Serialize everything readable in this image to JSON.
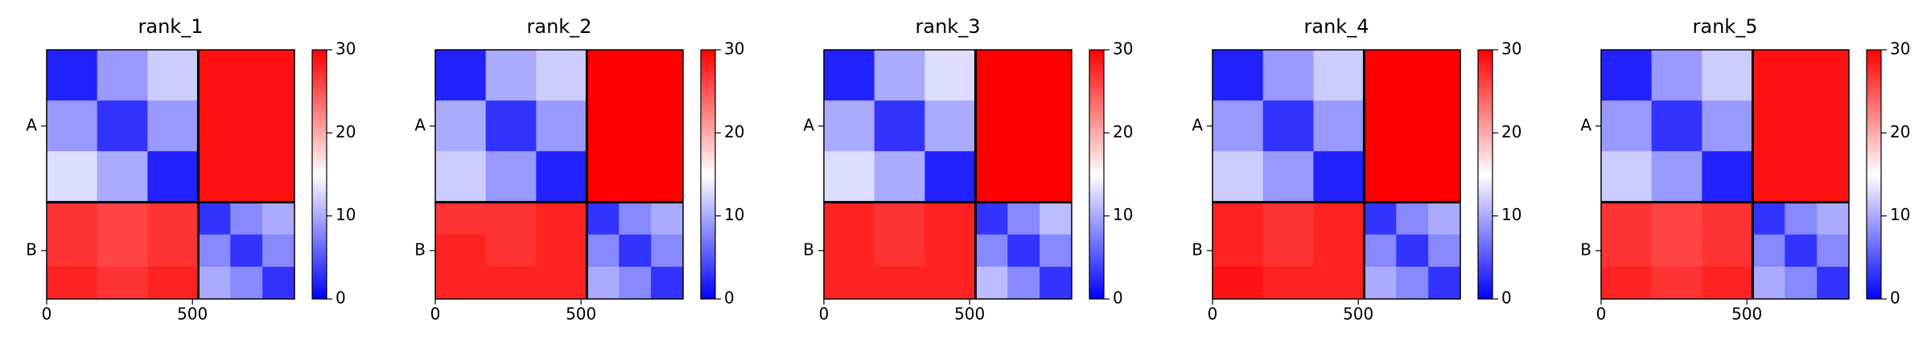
{
  "chart_data": [
    {
      "type": "heatmap",
      "title": "rank_1",
      "bins": [
        0,
        173,
        346,
        520,
        630,
        740,
        850
      ],
      "xlim": [
        0,
        850
      ],
      "xticks": [
        0,
        500
      ],
      "yticks": [
        {
          "value": 260,
          "label": "A"
        },
        {
          "value": 685,
          "label": "B"
        }
      ],
      "chain_breaks": [
        520
      ],
      "clim": [
        0,
        30
      ],
      "cticks": [
        0,
        10,
        20,
        30
      ],
      "colormap": "bwr",
      "z": [
        [
          2,
          9,
          12,
          29,
          29,
          29
        ],
        [
          9,
          3,
          9,
          29,
          29,
          29
        ],
        [
          13,
          10,
          2,
          29,
          29,
          29
        ],
        [
          27,
          26,
          27,
          3,
          8,
          10
        ],
        [
          27,
          26,
          27,
          8,
          3,
          8
        ],
        [
          28,
          27,
          28,
          10,
          8,
          3
        ]
      ]
    },
    {
      "type": "heatmap",
      "title": "rank_2",
      "bins": [
        0,
        173,
        346,
        520,
        630,
        740,
        850
      ],
      "xlim": [
        0,
        850
      ],
      "xticks": [
        0,
        500
      ],
      "yticks": [
        {
          "value": 260,
          "label": "A"
        },
        {
          "value": 685,
          "label": "B"
        }
      ],
      "chain_breaks": [
        520
      ],
      "clim": [
        0,
        30
      ],
      "cticks": [
        0,
        10,
        20,
        30
      ],
      "colormap": "bwr",
      "z": [
        [
          2,
          10,
          12,
          30,
          30,
          30
        ],
        [
          10,
          3,
          9,
          30,
          30,
          30
        ],
        [
          12,
          9,
          2,
          30,
          30,
          30
        ],
        [
          27,
          27,
          28,
          3,
          8,
          10
        ],
        [
          28,
          27,
          28,
          8,
          3,
          8
        ],
        [
          28,
          28,
          28,
          10,
          8,
          3
        ]
      ]
    },
    {
      "type": "heatmap",
      "title": "rank_3",
      "bins": [
        0,
        173,
        346,
        520,
        630,
        740,
        850
      ],
      "xlim": [
        0,
        850
      ],
      "xticks": [
        0,
        500
      ],
      "yticks": [
        {
          "value": 260,
          "label": "A"
        },
        {
          "value": 685,
          "label": "B"
        }
      ],
      "chain_breaks": [
        520
      ],
      "clim": [
        0,
        30
      ],
      "cticks": [
        0,
        10,
        20,
        30
      ],
      "colormap": "bwr",
      "z": [
        [
          2,
          10,
          13,
          30,
          30,
          30
        ],
        [
          10,
          3,
          10,
          30,
          30,
          30
        ],
        [
          13,
          10,
          2,
          30,
          30,
          30
        ],
        [
          28,
          27,
          28,
          3,
          8,
          11
        ],
        [
          28,
          27,
          28,
          8,
          3,
          8
        ],
        [
          28,
          28,
          28,
          11,
          8,
          3
        ]
      ]
    },
    {
      "type": "heatmap",
      "title": "rank_4",
      "bins": [
        0,
        173,
        346,
        520,
        630,
        740,
        850
      ],
      "xlim": [
        0,
        850
      ],
      "xticks": [
        0,
        500
      ],
      "yticks": [
        {
          "value": 260,
          "label": "A"
        },
        {
          "value": 685,
          "label": "B"
        }
      ],
      "chain_breaks": [
        520
      ],
      "clim": [
        0,
        30
      ],
      "cticks": [
        0,
        10,
        20,
        30
      ],
      "colormap": "bwr",
      "z": [
        [
          2,
          9,
          12,
          30,
          30,
          30
        ],
        [
          9,
          3,
          9,
          30,
          30,
          30
        ],
        [
          12,
          9,
          2,
          30,
          30,
          30
        ],
        [
          28,
          27,
          28,
          3,
          8,
          10
        ],
        [
          28,
          27,
          28,
          8,
          3,
          8
        ],
        [
          29,
          28,
          28,
          10,
          8,
          3
        ]
      ]
    },
    {
      "type": "heatmap",
      "title": "rank_5",
      "bins": [
        0,
        173,
        346,
        520,
        630,
        740,
        850
      ],
      "xlim": [
        0,
        850
      ],
      "xticks": [
        0,
        500
      ],
      "yticks": [
        {
          "value": 260,
          "label": "A"
        },
        {
          "value": 685,
          "label": "B"
        }
      ],
      "chain_breaks": [
        520
      ],
      "clim": [
        0,
        30
      ],
      "cticks": [
        0,
        10,
        20,
        30
      ],
      "colormap": "bwr",
      "z": [
        [
          2,
          9,
          12,
          29,
          29,
          29
        ],
        [
          9,
          3,
          9,
          29,
          29,
          29
        ],
        [
          12,
          9,
          2,
          29,
          29,
          29
        ],
        [
          27,
          26,
          27,
          3,
          8,
          10
        ],
        [
          27,
          26,
          27,
          8,
          3,
          8
        ],
        [
          28,
          27,
          28,
          10,
          8,
          3
        ]
      ]
    }
  ]
}
